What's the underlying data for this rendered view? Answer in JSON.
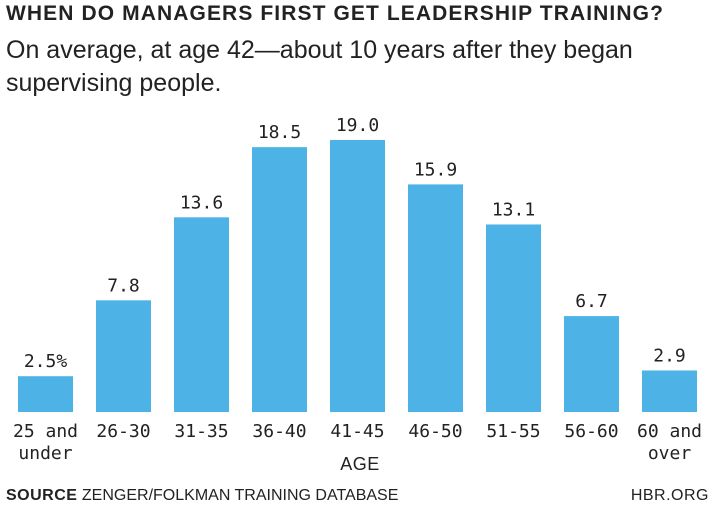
{
  "header": {
    "title": "WHEN DO MANAGERS FIRST GET LEADERSHIP TRAINING?",
    "subtitle": "On average, at age 42—about 10 years after they began supervising people."
  },
  "footer": {
    "source_label": "SOURCE",
    "source_text": "ZENGER/FOLKMAN TRAINING DATABASE",
    "site": "HBR.ORG"
  },
  "chart_data": {
    "type": "bar",
    "categories": [
      [
        "25 and",
        "under"
      ],
      [
        "26-30"
      ],
      [
        "31-35"
      ],
      [
        "36-40"
      ],
      [
        "41-45"
      ],
      [
        "46-50"
      ],
      [
        "51-55"
      ],
      [
        "56-60"
      ],
      [
        "60 and",
        "over"
      ]
    ],
    "values": [
      2.5,
      7.8,
      13.6,
      18.5,
      19.0,
      15.9,
      13.1,
      6.7,
      2.9
    ],
    "data_labels": [
      "2.5%",
      "7.8",
      "13.6",
      "18.5",
      "19.0",
      "15.9",
      "13.1",
      "6.7",
      "2.9"
    ],
    "xlabel": "AGE",
    "ylabel": "",
    "ylim": [
      0,
      19.0
    ],
    "bar_color": "#4db3e6",
    "grid": false,
    "legend": false
  }
}
